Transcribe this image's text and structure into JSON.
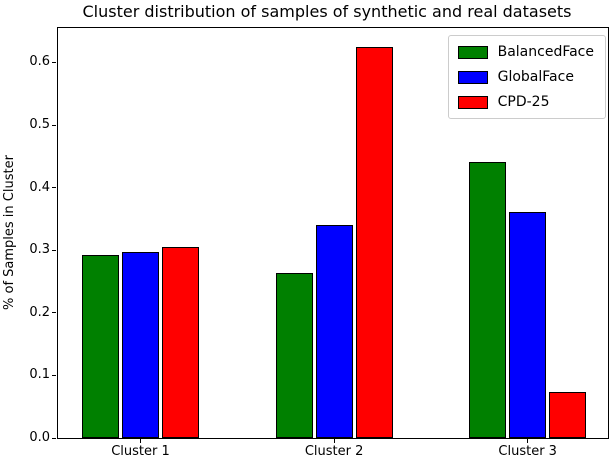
{
  "chart_data": {
    "type": "bar",
    "title": "Cluster distribution of samples of synthetic and real datasets",
    "xlabel": "",
    "ylabel": "% of Samples in Cluster",
    "categories": [
      "Cluster 1",
      "Cluster 2",
      "Cluster 3"
    ],
    "series": [
      {
        "name": "BalancedFace",
        "color": "#008000",
        "values": [
          0.293,
          0.264,
          0.441
        ]
      },
      {
        "name": "GlobalFace",
        "color": "#0000ff",
        "values": [
          0.298,
          0.34,
          0.361
        ]
      },
      {
        "name": "CPD-25",
        "color": "#ff0000",
        "values": [
          0.305,
          0.625,
          0.073
        ]
      }
    ],
    "ylim": [
      0,
      0.655
    ],
    "yticks": [
      0.0,
      0.1,
      0.2,
      0.3,
      0.4,
      0.5,
      0.6
    ],
    "ytick_labels": [
      "0.0",
      "0.1",
      "0.2",
      "0.3",
      "0.4",
      "0.5",
      "0.6"
    ],
    "grid": false,
    "legend_position": "upper right",
    "style": {
      "bar_edge_color": "#000000",
      "spine_color": "#000000",
      "legend_border_color": "#cccccc",
      "background_color": "#ffffff",
      "text_color": "#000000"
    }
  }
}
